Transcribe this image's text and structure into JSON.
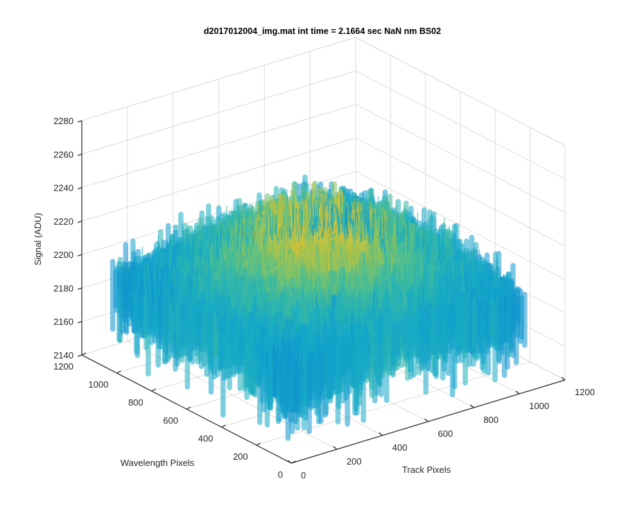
{
  "chart_data": {
    "type": "surface",
    "title": "d2017012004_img.mat int time = 2.1664 sec  NaN nm BS02",
    "xlabel": "Track Pixels",
    "ylabel": "Wavelength Pixels",
    "zlabel": "Signal (ADU)",
    "xlim": [
      0,
      1200
    ],
    "ylim": [
      0,
      1200
    ],
    "zlim": [
      2140,
      2280
    ],
    "xticks": [
      "0",
      "200",
      "400",
      "600",
      "800",
      "1000",
      "1200"
    ],
    "yticks": [
      "0",
      "200",
      "400",
      "600",
      "800",
      "1000",
      "1200"
    ],
    "zticks": [
      "2140",
      "2160",
      "2180",
      "2200",
      "2220",
      "2240",
      "2260",
      "2280"
    ],
    "grid": true,
    "colormap": "parula",
    "colors": {
      "low": "#0f9ad9",
      "mid": "#3cb9a6",
      "high": "#e6c12e"
    },
    "data_extent": {
      "x": [
        1,
        1024
      ],
      "y": [
        1,
        1024
      ]
    },
    "z_profile": {
      "baseline_edge": 2190,
      "center_peak": 2228,
      "noise_amplitude": 18
    }
  }
}
